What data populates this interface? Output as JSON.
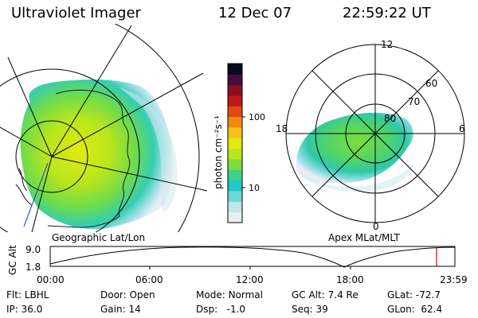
{
  "header": {
    "title": "Ultraviolet Imager",
    "date": "12 Dec 07",
    "time": "22:59:22 UT"
  },
  "left_panel": {
    "caption": "Geographic Lat/Lon"
  },
  "right_panel": {
    "caption": "Apex MLat/MLT",
    "mlt_labels": [
      "12",
      "18",
      "6",
      "0"
    ],
    "mlat_labels": [
      "60",
      "70",
      "80"
    ]
  },
  "colorbar": {
    "unit_label": "photon cm⁻²s⁻¹",
    "tick_labels": [
      "100",
      "10"
    ],
    "colors": [
      "#e8eef0",
      "#bfe6ea",
      "#6fd6d6",
      "#22c7c7",
      "#3fd08a",
      "#7ddc3a",
      "#b8e61c",
      "#e0ea10",
      "#f4c21a",
      "#f08a12",
      "#e04a10",
      "#c01818",
      "#8a1020",
      "#40103a",
      "#0a0a1e"
    ]
  },
  "altitude_plot": {
    "ylabel": "GC Alt",
    "ytick_top": "9.0",
    "ytick_bottom": "1.8",
    "xticks": [
      "00:00",
      "06:00",
      "12:00",
      "18:00",
      "23:59"
    ],
    "current_marker_color": "#e00000"
  },
  "info": {
    "flt_label": "Flt:",
    "flt_value": "LBHL",
    "ip_label": "IP:",
    "ip_value": "36.0",
    "door_label": "Door:",
    "door_value": "Open",
    "gain_label": "Gain:",
    "gain_value": "14",
    "mode_label": "Mode:",
    "mode_value": "Normal",
    "dsp_label": "Dsp:",
    "dsp_value": "-1.0",
    "gcalt_label": "GC Alt:",
    "gcalt_value": "7.4 Re",
    "seq_label": "Seq:",
    "seq_value": "39",
    "glat_label": "GLat:",
    "glat_value": "-72.7",
    "glon_label": "GLon:",
    "glon_value": "62.4"
  }
}
